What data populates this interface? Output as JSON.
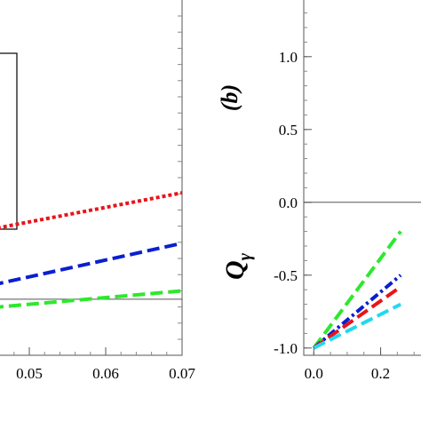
{
  "chart_data": [
    {
      "type": "line",
      "panel": "left (cropped)",
      "xlim": [
        0.045,
        0.07
      ],
      "ylim": [
        -1.05,
        0.25
      ],
      "x_ticks": [
        "0.05",
        "0.06",
        "0.07"
      ],
      "x_tick_values": [
        0.05,
        0.06,
        0.07
      ],
      "grid": false,
      "legend": "boxed region at top-left, contents cropped",
      "reference_line_y": -0.85,
      "series": [
        {
          "color": "#e8141a",
          "dash": "dotted",
          "x": [
            0.045,
            0.07
          ],
          "y": [
            -0.6,
            -0.47
          ]
        },
        {
          "color": "#0a1fd0",
          "dash": "dashed",
          "x": [
            0.045,
            0.07
          ],
          "y": [
            -0.8,
            -0.65
          ]
        },
        {
          "color": "#2ee82e",
          "dash": "dashed",
          "x": [
            0.045,
            0.07
          ],
          "y": [
            -0.88,
            -0.82
          ]
        }
      ]
    },
    {
      "type": "line",
      "panel": "right (cropped)",
      "panel_label": "(b)",
      "ylabel": "Q",
      "ylabel_subscript": "γ",
      "xlim": [
        -0.03,
        0.35
      ],
      "ylim": [
        -1.05,
        1.45
      ],
      "x_ticks": [
        "0.0",
        "0.2"
      ],
      "x_tick_values": [
        0.0,
        0.2
      ],
      "y_ticks": [
        "-1.0",
        "-0.5",
        "0.0",
        "0.5",
        "1.0"
      ],
      "y_tick_values": [
        -1.0,
        -0.5,
        0.0,
        0.5,
        1.0
      ],
      "grid": false,
      "reference_line_y": 0.0,
      "series": [
        {
          "color": "#2ee82e",
          "dash": "dashed",
          "x": [
            0.0,
            0.26
          ],
          "y": [
            -1.0,
            -0.2
          ]
        },
        {
          "color": "#0a1fd0",
          "dash": "dashdot",
          "x": [
            0.0,
            0.26
          ],
          "y": [
            -1.0,
            -0.5
          ]
        },
        {
          "color": "#e8141a",
          "dash": "dashed",
          "x": [
            0.0,
            0.26
          ],
          "y": [
            -1.0,
            -0.58
          ]
        },
        {
          "color": "#22d8f0",
          "dash": "dashed",
          "x": [
            0.0,
            0.26
          ],
          "y": [
            -1.0,
            -0.7
          ]
        }
      ]
    }
  ]
}
